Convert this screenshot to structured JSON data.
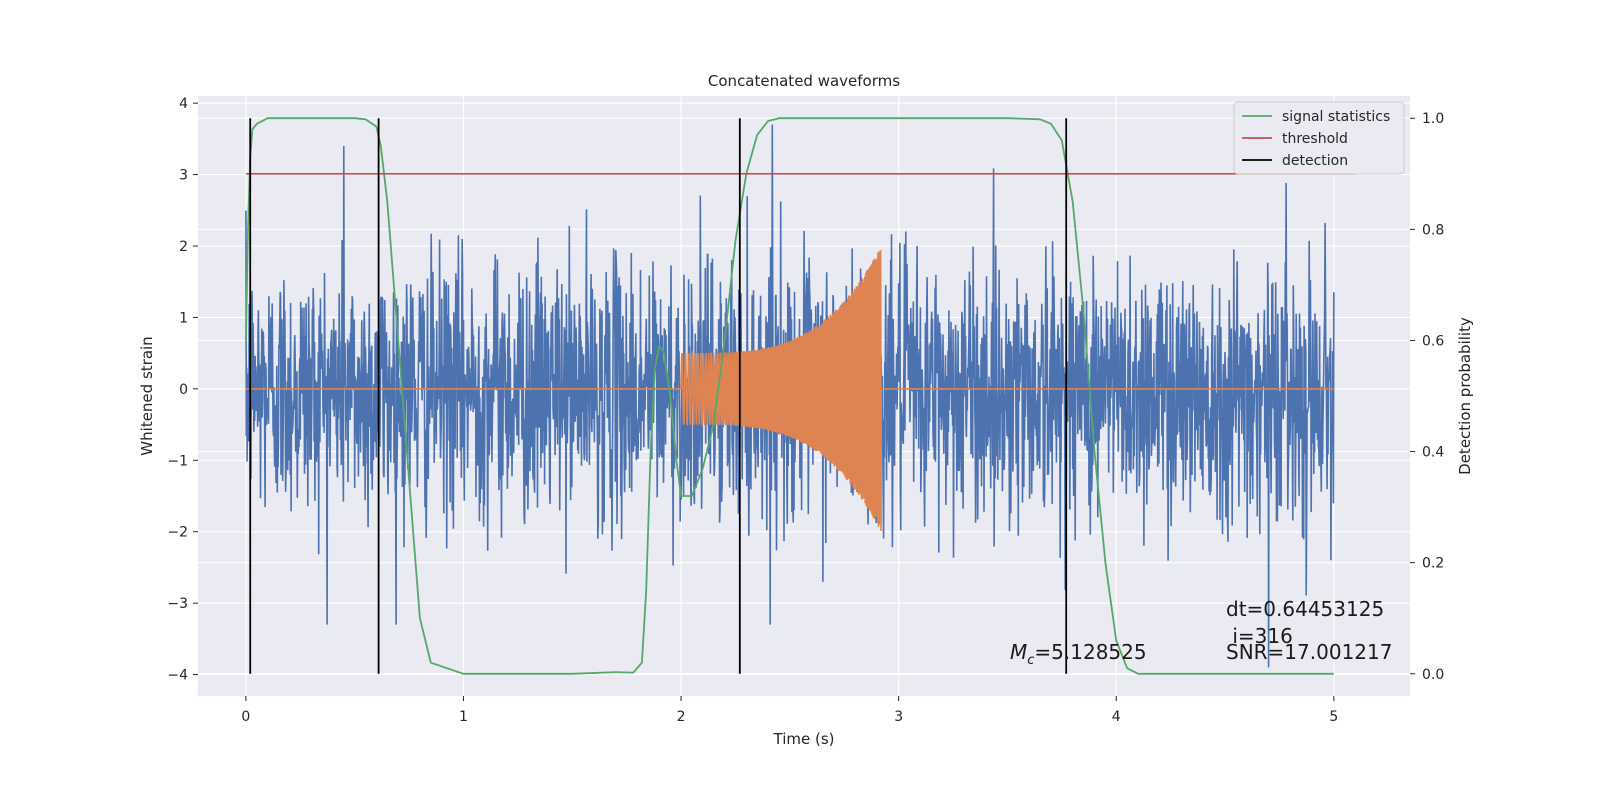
{
  "chart_data": {
    "type": "line",
    "title": "Concatenated waveforms",
    "xlabel": "Time (s)",
    "ylabel": "Whitened strain",
    "y2label": "Detection probability",
    "xlim": [
      -0.22,
      5.35
    ],
    "ylim": [
      -4.3,
      4.1
    ],
    "y2lim": [
      -0.04,
      1.04
    ],
    "xticks": [
      0,
      1,
      2,
      3,
      4,
      5
    ],
    "yticks": [
      -4,
      -3,
      -2,
      -1,
      0,
      1,
      2,
      3,
      4
    ],
    "y2ticks": [
      0.0,
      0.2,
      0.4,
      0.6,
      0.8,
      1.0
    ],
    "grid": true,
    "legend_position": "top-right",
    "series": [
      {
        "name": "",
        "role": "noise",
        "axis": "left",
        "description_values": "whitened noise strain, approx Gaussian",
        "x_range": [
          0,
          5
        ],
        "amplitude_sigma": 0.9,
        "peak_values": [
          {
            "x": 0.45,
            "y": 3.4
          },
          {
            "x": 2.42,
            "y": 3.7
          },
          {
            "x": 4.7,
            "y": -3.9
          }
        ],
        "color": "#4c72b0"
      },
      {
        "name": "",
        "role": "injected-signal",
        "axis": "left",
        "chirp_start": 2.0,
        "chirp_end": 2.92,
        "amplitude_start": 0.5,
        "amplitude_end": 2.0,
        "baseline": 0.0,
        "x_range": [
          0,
          5
        ],
        "color": "#dd8452"
      },
      {
        "name": "signal statistics",
        "axis": "right",
        "x": [
          0.0,
          0.01,
          0.02,
          0.03,
          0.05,
          0.1,
          0.2,
          0.5,
          0.55,
          0.6,
          0.62,
          0.65,
          0.7,
          0.73,
          0.76,
          0.8,
          0.85,
          1.0,
          1.5,
          1.7,
          1.78,
          1.82,
          1.84,
          1.86,
          1.88,
          1.9,
          1.92,
          1.95,
          1.98,
          2.0,
          2.05,
          2.1,
          2.15,
          2.2,
          2.25,
          2.3,
          2.35,
          2.4,
          2.45,
          2.5,
          3.0,
          3.5,
          3.65,
          3.7,
          3.75,
          3.8,
          3.85,
          3.9,
          3.95,
          4.0,
          4.05,
          4.1,
          4.5,
          5.0
        ],
        "y": [
          0.6,
          0.8,
          0.93,
          0.98,
          0.99,
          1.0,
          1.0,
          1.0,
          0.998,
          0.985,
          0.95,
          0.85,
          0.6,
          0.45,
          0.3,
          0.1,
          0.02,
          0.0,
          0.0,
          0.003,
          0.002,
          0.02,
          0.15,
          0.4,
          0.55,
          0.59,
          0.58,
          0.5,
          0.38,
          0.32,
          0.32,
          0.37,
          0.45,
          0.6,
          0.78,
          0.9,
          0.97,
          0.995,
          1.0,
          1.0,
          1.0,
          1.0,
          0.998,
          0.99,
          0.96,
          0.85,
          0.65,
          0.4,
          0.2,
          0.06,
          0.01,
          0.0,
          0.0,
          0.0
        ],
        "color": "#55a868"
      },
      {
        "name": "threshold",
        "axis": "right",
        "x": [
          0.0,
          5.1
        ],
        "y": [
          0.9,
          0.9
        ],
        "color": "#c44e52"
      },
      {
        "name": "detection",
        "axis": "right",
        "vlines_x": [
          0.02,
          0.61,
          2.27,
          3.77
        ],
        "vline_ymin": 0.0,
        "vline_ymax": 1.0,
        "color": "#000000"
      }
    ],
    "annotations": {
      "mc_symbol": "M",
      "mc_sub": "c",
      "mc_value": "=5.128525",
      "dt": "dt=0.64453125",
      "i": " i=316",
      "snr": "SNR=17.001217"
    }
  }
}
